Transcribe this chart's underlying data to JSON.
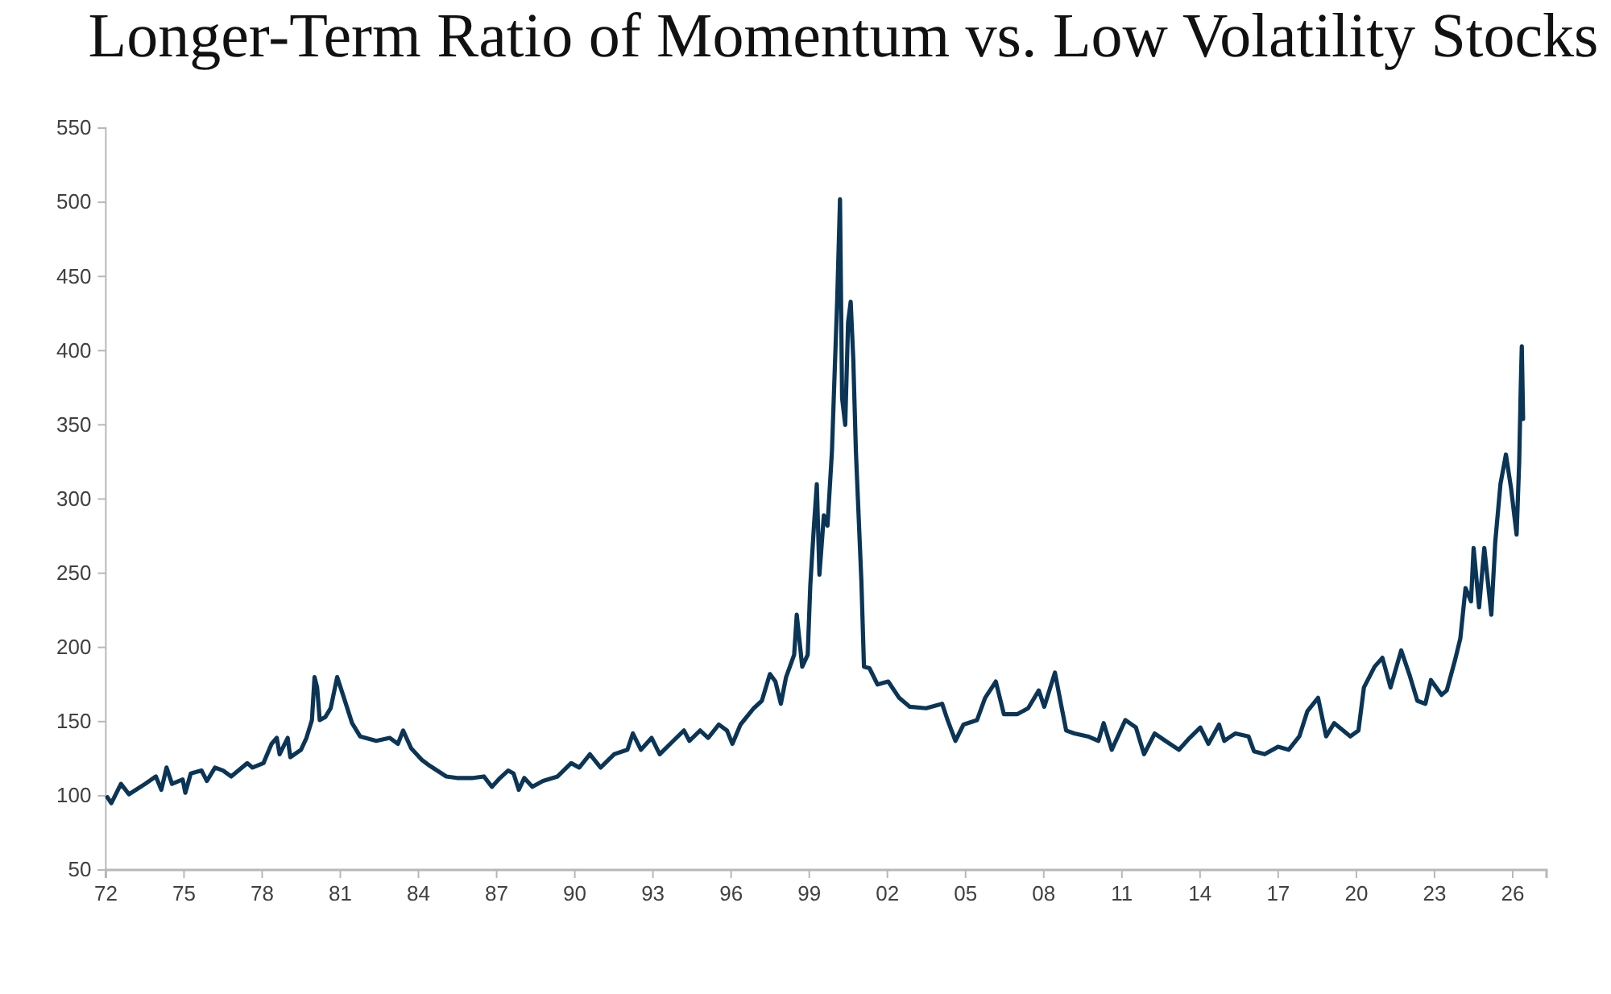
{
  "chart_data": {
    "type": "line",
    "title": "Longer-Term Ratio of Momentum vs. Low Volatility Stocks",
    "color": "#0b3556",
    "x": [
      1972.06,
      1972.21,
      1972.58,
      1972.89,
      1973.51,
      1973.92,
      1974.13,
      1974.33,
      1974.54,
      1974.95,
      1975.05,
      1975.26,
      1975.67,
      1975.88,
      1976.19,
      1976.5,
      1976.81,
      1977.43,
      1977.63,
      1978.05,
      1978.36,
      1978.56,
      1978.67,
      1978.98,
      1979.08,
      1979.49,
      1979.7,
      1979.91,
      1980.01,
      1980.11,
      1980.21,
      1980.42,
      1980.63,
      1980.88,
      1981.14,
      1981.45,
      1981.76,
      1982.38,
      1982.9,
      1983.21,
      1983.41,
      1983.72,
      1984.14,
      1984.45,
      1985.07,
      1985.48,
      1986.1,
      1986.51,
      1986.82,
      1987.13,
      1987.44,
      1987.65,
      1987.85,
      1988.06,
      1988.37,
      1988.78,
      1989.34,
      1989.86,
      1990.17,
      1990.58,
      1990.99,
      1991.51,
      1992.02,
      1992.23,
      1992.54,
      1992.95,
      1993.26,
      1993.78,
      1994.19,
      1994.4,
      1994.81,
      1995.12,
      1995.53,
      1995.84,
      1996.05,
      1996.36,
      1996.87,
      1997.18,
      1997.49,
      1997.7,
      1997.91,
      1998.11,
      1998.42,
      1998.52,
      1998.73,
      1998.94,
      1999.04,
      1999.18,
      1999.29,
      1999.39,
      1999.56,
      1999.7,
      1999.87,
      1999.97,
      2000.07,
      2000.18,
      2000.26,
      2000.38,
      2000.49,
      2000.59,
      2000.69,
      2000.79,
      2001.0,
      2001.1,
      2001.31,
      2001.62,
      2002.03,
      2002.45,
      2002.86,
      2003.48,
      2004.1,
      2004.31,
      2004.61,
      2004.92,
      2005.44,
      2005.75,
      2006.16,
      2006.47,
      2006.99,
      2007.4,
      2007.81,
      2008.02,
      2008.43,
      2008.66,
      2008.86,
      2009.17,
      2009.69,
      2010.1,
      2010.3,
      2010.61,
      2011.13,
      2011.54,
      2011.85,
      2012.26,
      2012.67,
      2013.19,
      2013.6,
      2014.01,
      2014.32,
      2014.73,
      2014.93,
      2015.35,
      2015.86,
      2016.07,
      2016.48,
      2016.99,
      2017.4,
      2017.81,
      2018.12,
      2018.53,
      2018.84,
      2019.15,
      2019.77,
      2020.08,
      2020.29,
      2020.7,
      2021.0,
      2021.31,
      2021.72,
      2022.03,
      2022.34,
      2022.65,
      2022.86,
      2023.27,
      2023.47,
      2023.78,
      2023.99,
      2024.19,
      2024.4,
      2024.5,
      2024.71,
      2024.91,
      2025.18,
      2025.33,
      2025.53,
      2025.74,
      2025.94,
      2026.15,
      2026.25,
      2026.31,
      2026.35,
      2026.4
    ],
    "values": [
      99,
      95,
      108,
      101,
      108,
      113,
      104,
      119,
      108,
      111,
      102,
      115,
      117,
      110,
      119,
      117,
      113,
      122,
      119,
      122,
      135,
      139,
      128,
      139,
      126,
      131,
      139,
      151,
      180,
      173,
      151,
      153,
      159,
      180,
      166,
      149,
      140,
      137,
      139,
      135,
      144,
      132,
      124,
      120,
      113,
      112,
      112,
      113,
      106,
      112,
      117,
      115,
      104,
      112,
      106,
      110,
      113,
      122,
      119,
      128,
      119,
      128,
      131,
      142,
      131,
      139,
      128,
      137,
      144,
      137,
      144,
      139,
      148,
      144,
      135,
      148,
      159,
      164,
      182,
      177,
      162,
      180,
      195,
      222,
      187,
      195,
      242,
      282,
      310,
      249,
      289,
      282,
      332,
      383,
      433,
      502,
      368,
      350,
      419,
      433,
      394,
      332,
      245,
      187,
      186,
      175,
      177,
      166,
      160,
      159,
      162,
      151,
      137,
      148,
      151,
      166,
      177,
      155,
      155,
      159,
      171,
      160,
      183,
      162,
      144,
      142,
      140,
      137,
      149,
      131,
      151,
      146,
      128,
      142,
      137,
      131,
      139,
      146,
      135,
      148,
      137,
      142,
      140,
      130,
      128,
      133,
      131,
      140,
      157,
      166,
      140,
      149,
      140,
      144,
      173,
      187,
      193,
      173,
      198,
      182,
      164,
      162,
      178,
      168,
      171,
      191,
      206,
      240,
      231,
      267,
      227,
      267,
      222,
      271,
      310,
      330,
      307,
      276,
      325,
      376,
      403,
      354
    ],
    "xlim": [
      1972,
      2027.3
    ],
    "xticks": [
      {
        "value": 1972,
        "label": "72"
      },
      {
        "value": 1975,
        "label": "75"
      },
      {
        "value": 1978,
        "label": "78"
      },
      {
        "value": 1981,
        "label": "81"
      },
      {
        "value": 1984,
        "label": "84"
      },
      {
        "value": 1987,
        "label": "87"
      },
      {
        "value": 1990,
        "label": "90"
      },
      {
        "value": 1993,
        "label": "93"
      },
      {
        "value": 1996,
        "label": "96"
      },
      {
        "value": 1999,
        "label": "99"
      },
      {
        "value": 2002,
        "label": "02"
      },
      {
        "value": 2005,
        "label": "05"
      },
      {
        "value": 2008,
        "label": "08"
      },
      {
        "value": 2011,
        "label": "11"
      },
      {
        "value": 2014,
        "label": "14"
      },
      {
        "value": 2017,
        "label": "17"
      },
      {
        "value": 2020,
        "label": "20"
      },
      {
        "value": 2023,
        "label": "23"
      },
      {
        "value": 2026,
        "label": "26"
      }
    ],
    "ylim": [
      50,
      550
    ],
    "yticks": [
      50,
      100,
      150,
      200,
      250,
      300,
      350,
      400,
      450,
      500,
      550
    ]
  }
}
